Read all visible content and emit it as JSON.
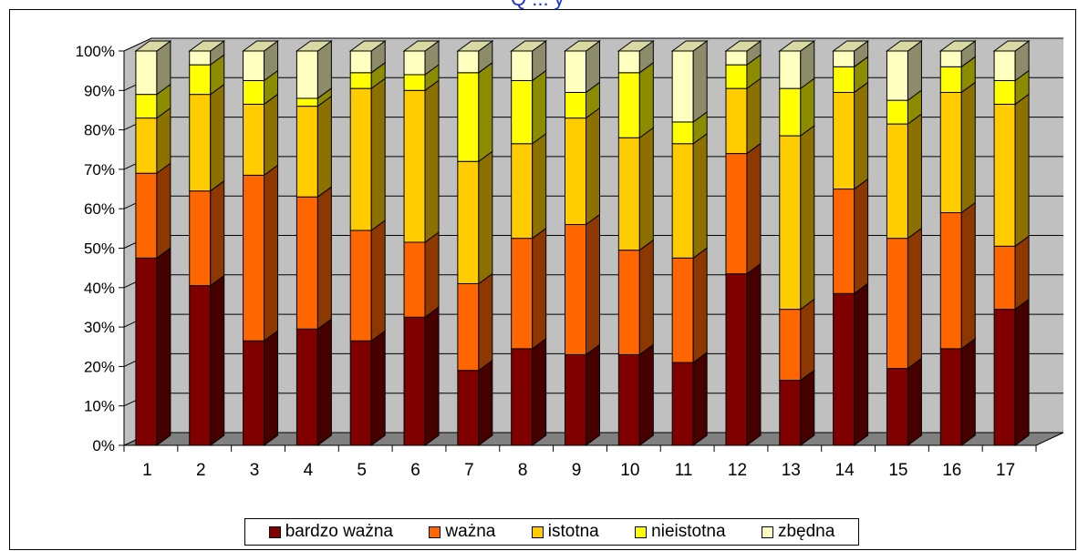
{
  "title_fragment": "Q ... y",
  "colors": {
    "bardzo_wazna": "#800000",
    "wazna": "#ff6600",
    "istotna": "#ffcc00",
    "nieistotna": "#ffff00",
    "zbedna": "#ffffc0",
    "wall": "#c0c0c0",
    "floor": "#808080"
  },
  "chart_data": {
    "type": "bar",
    "stacked": "percent",
    "three_d": true,
    "categories": [
      "1",
      "2",
      "3",
      "4",
      "5",
      "6",
      "7",
      "8",
      "9",
      "10",
      "11",
      "12",
      "13",
      "14",
      "15",
      "16",
      "17"
    ],
    "series": [
      {
        "name": "bardzo ważna",
        "values": [
          47.5,
          40.5,
          26.5,
          29.5,
          26.5,
          32.5,
          19.0,
          24.5,
          23.0,
          23.0,
          21.0,
          43.5,
          16.5,
          38.5,
          19.5,
          24.5,
          34.5
        ]
      },
      {
        "name": "ważna",
        "values": [
          21.5,
          24.0,
          42.0,
          33.5,
          28.0,
          19.0,
          22.0,
          28.0,
          33.0,
          26.5,
          26.5,
          30.5,
          18.0,
          26.5,
          33.0,
          34.5,
          16.0
        ]
      },
      {
        "name": "istotna",
        "values": [
          14.0,
          24.5,
          18.0,
          23.0,
          36.0,
          38.5,
          31.0,
          24.0,
          27.0,
          28.5,
          29.0,
          16.5,
          44.0,
          24.5,
          29.0,
          30.5,
          36.0
        ]
      },
      {
        "name": "nieistotna",
        "values": [
          6.0,
          7.5,
          6.0,
          2.0,
          4.0,
          4.0,
          22.5,
          16.0,
          6.5,
          16.5,
          5.5,
          6.0,
          12.0,
          6.5,
          6.0,
          6.5,
          6.0
        ]
      },
      {
        "name": "zbędna",
        "values": [
          11.0,
          3.5,
          7.5,
          12.0,
          5.5,
          6.0,
          5.5,
          7.5,
          10.5,
          5.5,
          18.0,
          3.5,
          9.5,
          4.0,
          12.5,
          4.0,
          7.5
        ]
      }
    ],
    "yticks": [
      "0%",
      "10%",
      "20%",
      "30%",
      "40%",
      "50%",
      "60%",
      "70%",
      "80%",
      "90%",
      "100%"
    ],
    "ylim": [
      0,
      100
    ],
    "legend_position": "bottom"
  }
}
